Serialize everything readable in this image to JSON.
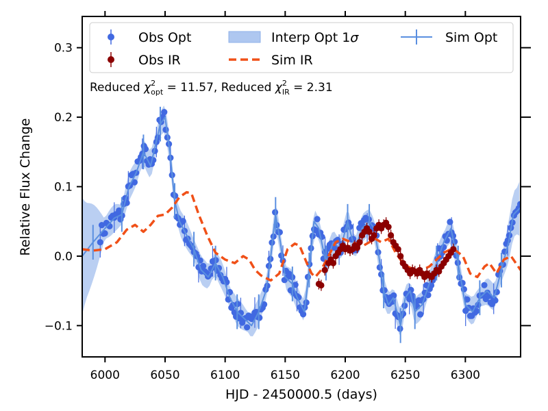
{
  "chart_data": {
    "type": "scatter",
    "xlabel": "HJD - 2450000.5 (days)",
    "ylabel": "Relative Flux Change",
    "xlim": [
      5981,
      6346
    ],
    "ylim": [
      -0.145,
      0.345
    ],
    "xticks": [
      6000,
      6050,
      6100,
      6150,
      6200,
      6250,
      6300
    ],
    "xtick_labels": [
      "6000",
      "6050",
      "6100",
      "6150",
      "6200",
      "6250",
      "6300"
    ],
    "yticks": [
      -0.1,
      0.0,
      0.1,
      0.2,
      0.3
    ],
    "ytick_labels": [
      "−0.1",
      "0.0",
      "0.1",
      "0.2",
      "0.3"
    ],
    "annotation": {
      "prefix": "Reduced ",
      "chi": "χ",
      "sup": "2",
      "sub1": "opt",
      "eq1": " = 11.57, Reduced ",
      "sub2": "IR",
      "eq2": " = 2.31"
    },
    "legend": {
      "placement": "top",
      "obs_opt": "Obs Opt",
      "obs_ir": "Obs IR",
      "band_prefix": "Interp Opt 1",
      "band_sigma": "σ",
      "sim_ir": "Sim IR",
      "sim_opt": "Sim Opt"
    },
    "colors": {
      "obs_opt": "#4169e1",
      "obs_ir": "#8b0000",
      "band": "#aec7f0",
      "sim_opt": "#5a8fe0",
      "sim_ir": "#f05018"
    },
    "series": [
      {
        "name": "Sim IR",
        "style": "dashed",
        "x": [
          5981,
          5990,
          6000,
          6010,
          6018,
          6025,
          6032,
          6038,
          6044,
          6050,
          6056,
          6062,
          6068,
          6072,
          6078,
          6085,
          6092,
          6100,
          6108,
          6115,
          6120,
          6125,
          6130,
          6138,
          6145,
          6152,
          6158,
          6162,
          6168,
          6172,
          6175,
          6180,
          6186,
          6192,
          6198,
          6205,
          6210,
          6215,
          6220,
          6225,
          6230,
          6236,
          6242,
          6248,
          6252,
          6258,
          6264,
          6270,
          6276,
          6282,
          6288,
          6292,
          6298,
          6304,
          6310,
          6316,
          6320,
          6326,
          6332,
          6338,
          6346
        ],
        "y": [
          0.01,
          0.008,
          0.01,
          0.02,
          0.038,
          0.045,
          0.035,
          0.045,
          0.058,
          0.06,
          0.07,
          0.085,
          0.092,
          0.09,
          0.06,
          0.03,
          0.005,
          -0.005,
          -0.01,
          0.0,
          -0.005,
          -0.02,
          -0.028,
          -0.035,
          -0.025,
          0.01,
          0.018,
          0.015,
          -0.01,
          -0.025,
          -0.03,
          -0.02,
          0.0,
          0.02,
          0.025,
          0.02,
          0.018,
          0.015,
          0.02,
          0.025,
          0.02,
          0.025,
          0.005,
          -0.01,
          -0.015,
          -0.02,
          -0.02,
          -0.015,
          -0.005,
          0.005,
          0.01,
          0.008,
          0.0,
          -0.025,
          -0.03,
          -0.015,
          -0.01,
          -0.025,
          -0.005,
          0.0,
          -0.02
        ]
      },
      {
        "name": "Sim Opt",
        "style": "solid",
        "x": [
          5981,
          5990,
          6000,
          6008,
          6014,
          6020,
          6026,
          6032,
          6038,
          6042,
          6046,
          6050,
          6054,
          6058,
          6062,
          6068,
          6074,
          6080,
          6086,
          6092,
          6098,
          6104,
          6110,
          6116,
          6122,
          6128,
          6134,
          6138,
          6142,
          6146,
          6150,
          6156,
          6160,
          6166,
          6170,
          6174,
          6178,
          6184,
          6190,
          6196,
          6202,
          6208,
          6214,
          6220,
          6224,
          6228,
          6232,
          6236,
          6240,
          6246,
          6250,
          6254,
          6258,
          6264,
          6270,
          6276,
          6282,
          6288,
          6294,
          6300,
          6306,
          6312,
          6318,
          6324,
          6330,
          6336,
          6340,
          6346
        ],
        "y": [
          0.0,
          0.02,
          0.04,
          0.055,
          0.06,
          0.1,
          0.12,
          0.15,
          0.13,
          0.16,
          0.19,
          0.2,
          0.15,
          0.08,
          0.05,
          0.03,
          0.01,
          -0.02,
          -0.03,
          -0.01,
          -0.03,
          -0.06,
          -0.08,
          -0.09,
          -0.1,
          -0.08,
          -0.05,
          0.0,
          0.06,
          0.02,
          -0.03,
          -0.04,
          -0.06,
          -0.08,
          -0.02,
          0.05,
          0.04,
          -0.01,
          0.02,
          0.01,
          0.05,
          0.01,
          0.04,
          0.05,
          0.04,
          0.0,
          -0.05,
          -0.07,
          -0.06,
          -0.1,
          -0.06,
          -0.05,
          -0.08,
          -0.07,
          -0.04,
          -0.01,
          0.02,
          0.04,
          -0.01,
          -0.07,
          -0.08,
          -0.06,
          -0.05,
          -0.06,
          -0.02,
          0.02,
          0.06,
          0.07
        ]
      },
      {
        "name": "Obs IR",
        "x": [
          6178,
          6180,
          6183,
          6186,
          6188,
          6190,
          6192,
          6194,
          6196,
          6198,
          6200,
          6202,
          6204,
          6206,
          6208,
          6210,
          6212,
          6214,
          6216,
          6218,
          6220,
          6222,
          6224,
          6226,
          6228,
          6230,
          6232,
          6234,
          6236,
          6238,
          6240,
          6242,
          6244,
          6246,
          6248,
          6250,
          6252,
          6254,
          6256,
          6258,
          6260,
          6262,
          6264,
          6266,
          6268,
          6270,
          6272,
          6274,
          6276,
          6278,
          6280,
          6282,
          6284,
          6286,
          6288,
          6290
        ],
        "y": [
          -0.04,
          -0.042,
          -0.02,
          -0.01,
          -0.005,
          -0.01,
          0.0,
          0.005,
          0.01,
          0.015,
          0.01,
          0.012,
          0.008,
          0.01,
          0.015,
          0.012,
          0.02,
          0.03,
          0.035,
          0.04,
          0.035,
          0.025,
          0.03,
          0.04,
          0.045,
          0.04,
          0.045,
          0.048,
          0.042,
          0.03,
          0.02,
          0.015,
          0.01,
          0.0,
          -0.01,
          -0.015,
          -0.02,
          -0.025,
          -0.02,
          -0.022,
          -0.025,
          -0.02,
          -0.025,
          -0.03,
          -0.025,
          -0.028,
          -0.03,
          -0.025,
          -0.02,
          -0.022,
          -0.015,
          -0.01,
          -0.005,
          0.0,
          0.005,
          0.01
        ]
      }
    ]
  }
}
